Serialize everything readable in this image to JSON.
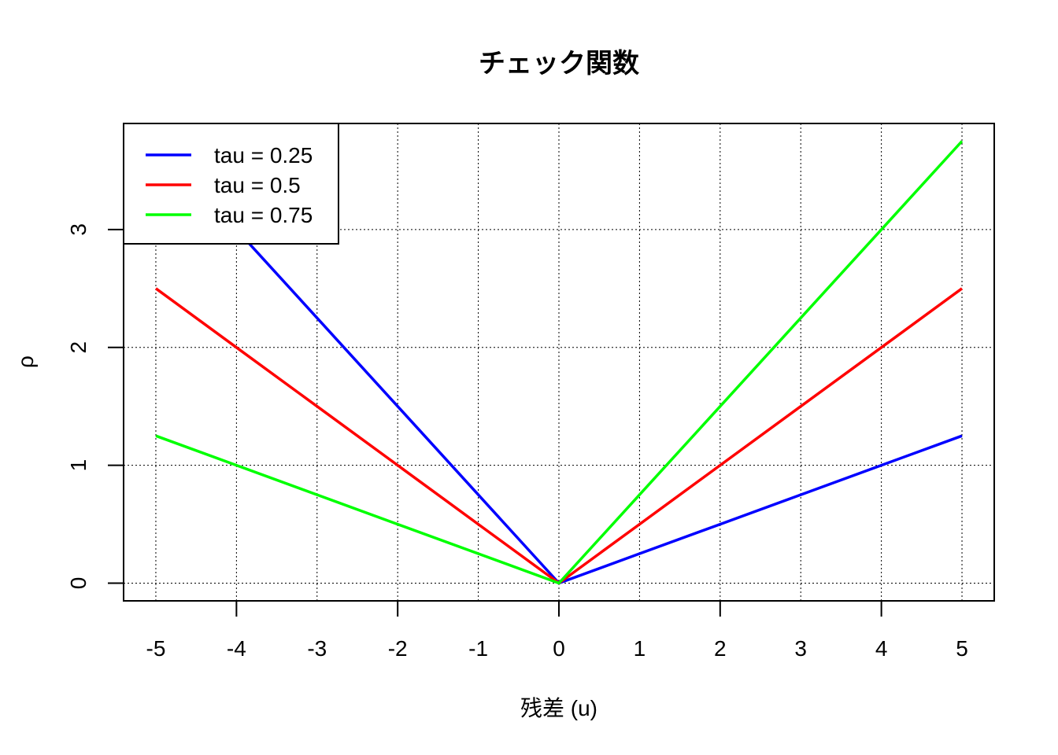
{
  "chart_data": {
    "type": "line",
    "title": "チェック関数",
    "xlabel": "残差 (u)",
    "ylabel": "ρ",
    "x": [
      -5,
      -4,
      -3,
      -2,
      -1,
      0,
      1,
      2,
      3,
      4,
      5
    ],
    "xlim": [
      -5.4,
      5.4
    ],
    "ylim": [
      -0.15,
      3.9
    ],
    "x_ticks": [
      "-5",
      "-4",
      "-3",
      "-2",
      "-1",
      "0",
      "1",
      "2",
      "3",
      "4",
      "5"
    ],
    "y_ticks": [
      "0",
      "1",
      "2",
      "3"
    ],
    "grid": true,
    "legend_position": "top-left",
    "series": [
      {
        "name": "tau = 0.25",
        "color": "#0000FF",
        "values": [
          3.75,
          3.0,
          2.25,
          1.5,
          0.75,
          0,
          0.25,
          0.5,
          0.75,
          1.0,
          1.25
        ]
      },
      {
        "name": "tau = 0.5",
        "color": "#FF0000",
        "values": [
          2.5,
          2.0,
          1.5,
          1.0,
          0.5,
          0,
          0.5,
          1.0,
          1.5,
          2.0,
          2.5
        ]
      },
      {
        "name": "tau = 0.75",
        "color": "#00FF00",
        "values": [
          1.25,
          1.0,
          0.75,
          0.5,
          0.25,
          0,
          0.75,
          1.5,
          2.25,
          3.0,
          3.75
        ]
      }
    ]
  }
}
